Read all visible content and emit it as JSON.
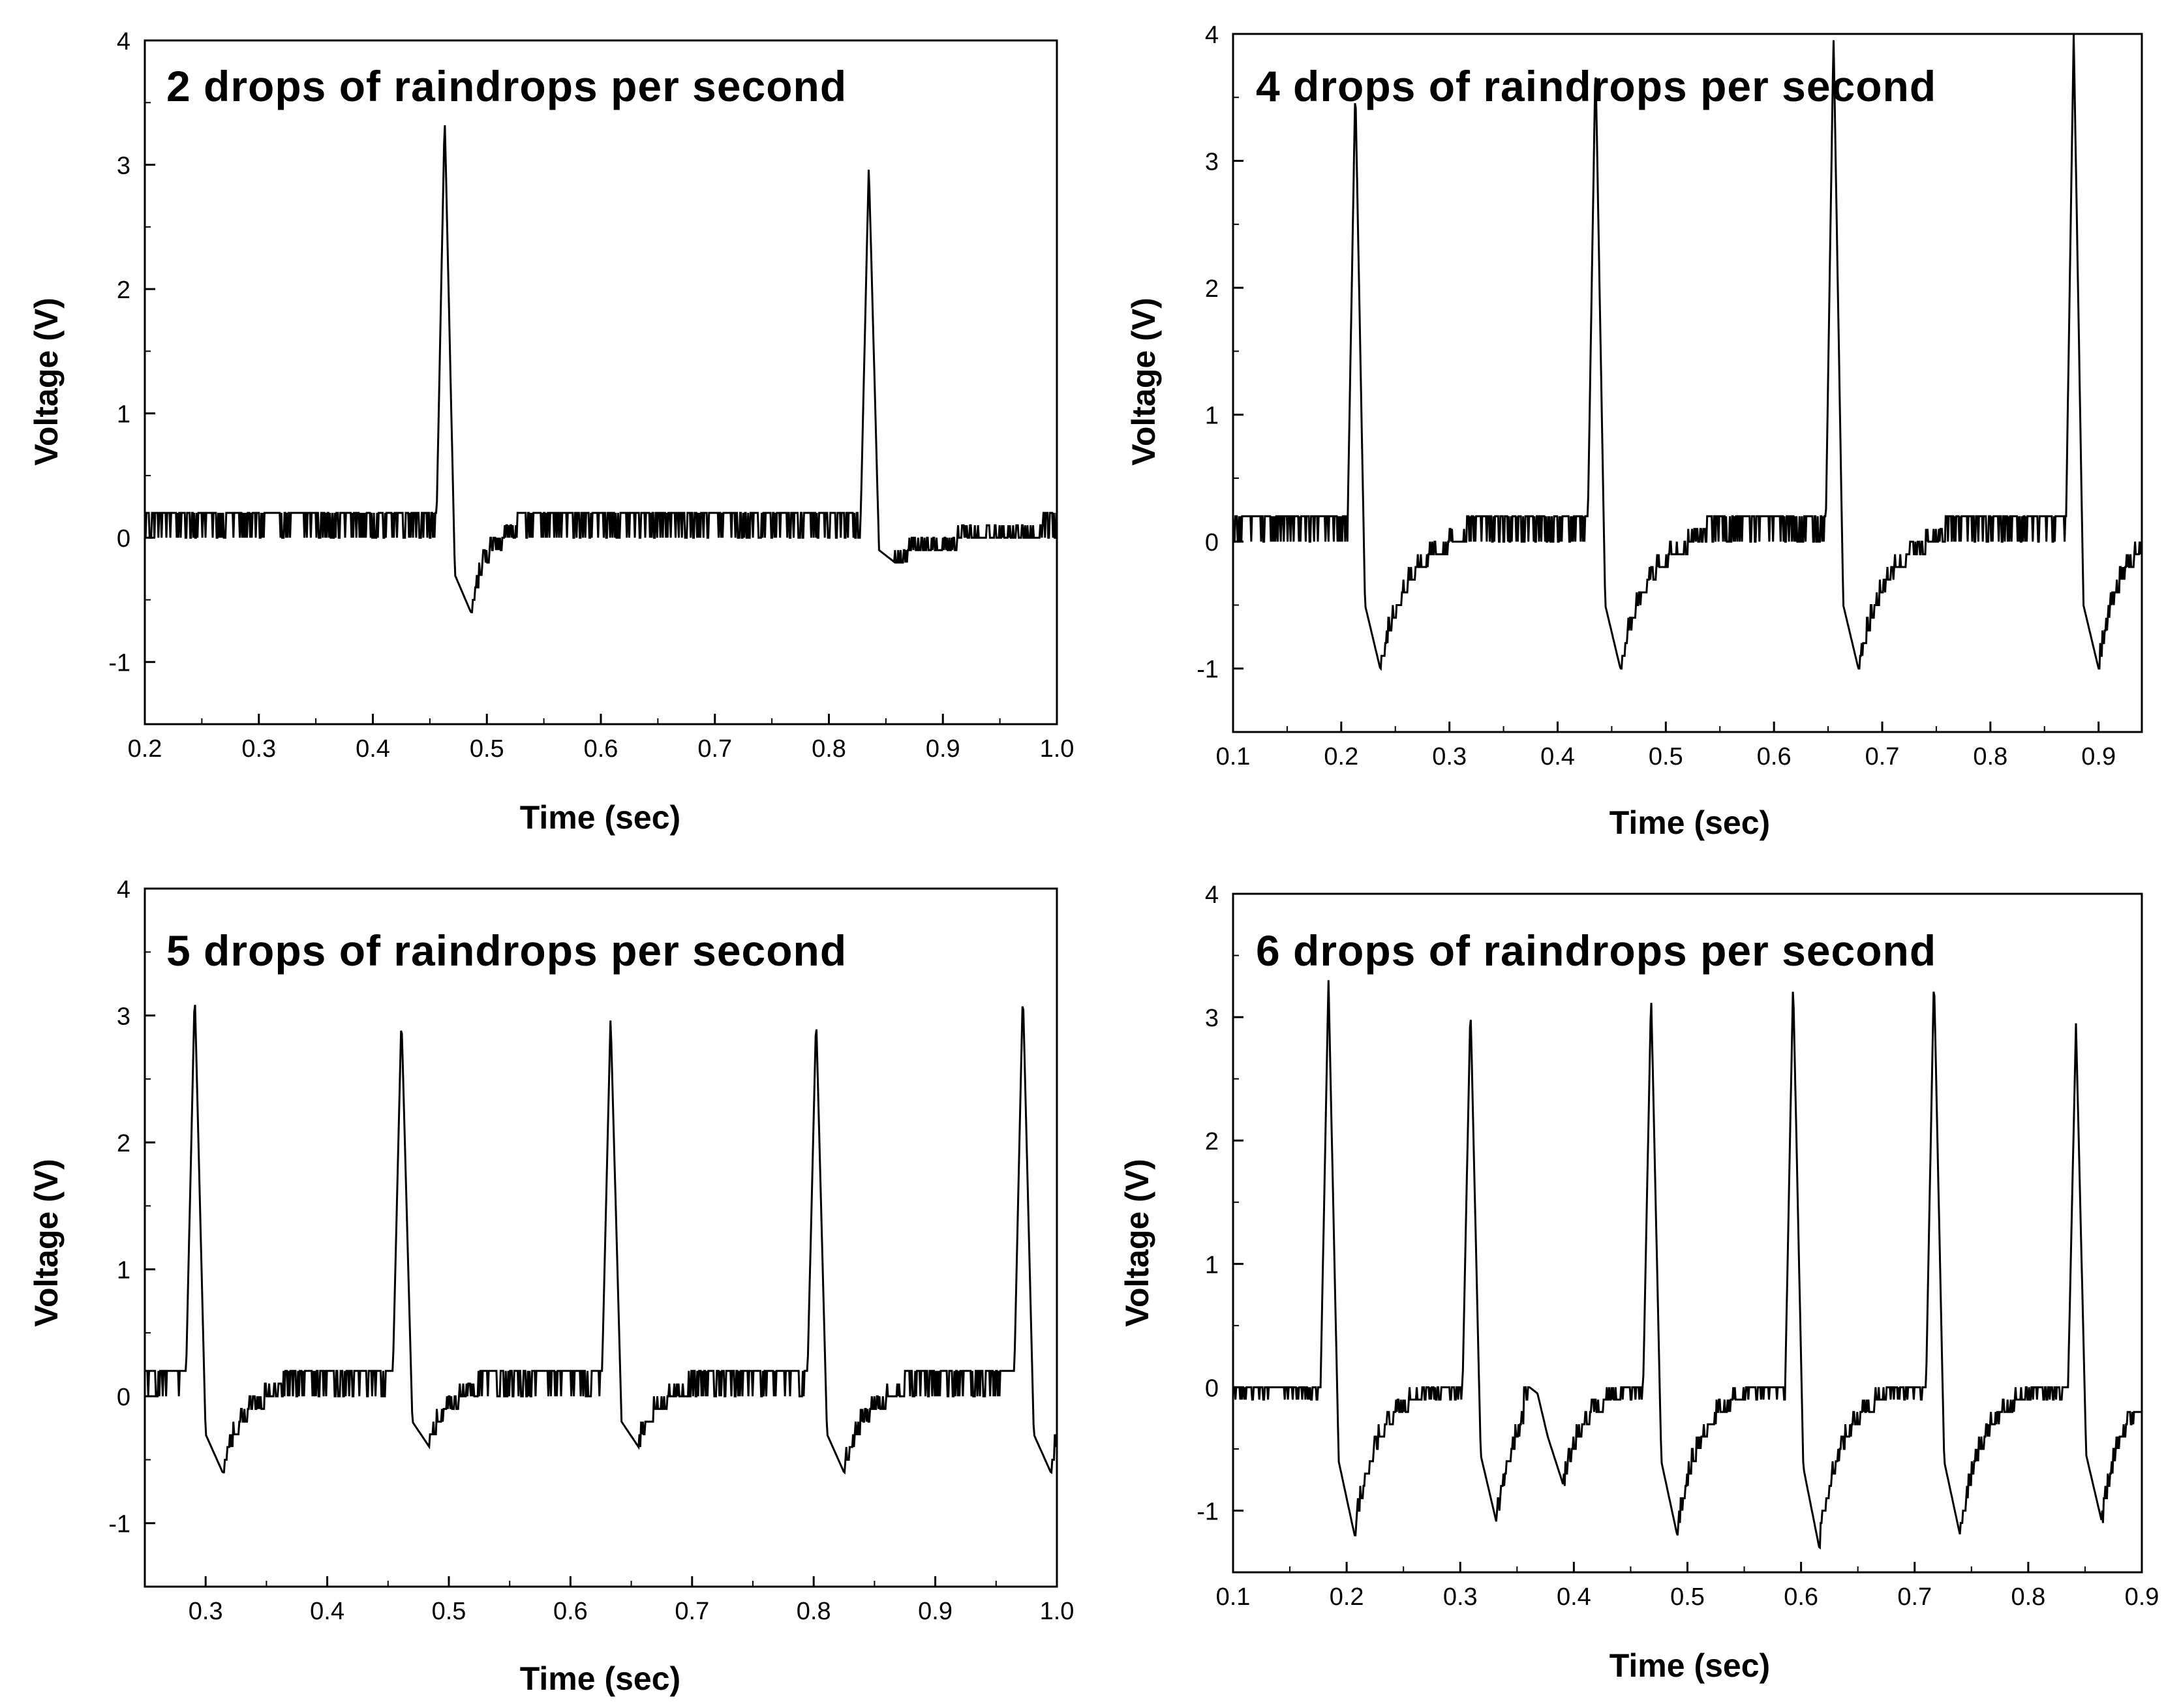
{
  "chart_data": [
    {
      "type": "line",
      "title": "2 drops of raindrops per second",
      "xlabel": "Time (sec)",
      "ylabel": "Voltage (V)",
      "xlim": [
        0.2,
        1.0
      ],
      "ylim": [
        -1.5,
        4
      ],
      "xticks": [
        "0.2",
        "0.3",
        "0.4",
        "0.5",
        "0.6",
        "0.7",
        "0.8",
        "0.9",
        "1.0"
      ],
      "yticks": [
        "-1",
        "0",
        "1",
        "2",
        "3",
        "4"
      ],
      "baseline": [
        0.0,
        0.2
      ],
      "peaks": [
        {
          "t": 0.463,
          "v": 3.4,
          "trough": -0.6,
          "rec": 0.04
        },
        {
          "t": 0.835,
          "v": 3.0,
          "trough": -0.2,
          "rec": 0.13
        }
      ]
    },
    {
      "type": "line",
      "title": "4 drops of raindrops per second",
      "xlabel": "Time (sec)",
      "ylabel": "Voltage (V)",
      "xlim": [
        0.1,
        0.94
      ],
      "ylim": [
        -1.5,
        4
      ],
      "xticks": [
        "0.1",
        "0.2",
        "0.3",
        "0.4",
        "0.5",
        "0.6",
        "0.7",
        "0.8",
        "0.9"
      ],
      "yticks": [
        "-1",
        "0",
        "1",
        "2",
        "3",
        "4"
      ],
      "baseline": [
        0.0,
        0.2
      ],
      "peaks": [
        {
          "t": 0.213,
          "v": 3.6,
          "trough": -1.0,
          "rec": 0.08
        },
        {
          "t": 0.435,
          "v": 3.8,
          "trough": -1.0,
          "rec": 0.08
        },
        {
          "t": 0.655,
          "v": 4.0,
          "trough": -1.0,
          "rec": 0.08
        },
        {
          "t": 0.877,
          "v": 4.0,
          "trough": -1.0,
          "rec": 0.06
        }
      ]
    },
    {
      "type": "line",
      "title": "5 drops of raindrops per second",
      "xlabel": "Time (sec)",
      "ylabel": "Voltage (V)",
      "xlim": [
        0.25,
        1.0
      ],
      "ylim": [
        -1.5,
        4
      ],
      "xticks": [
        "0.3",
        "0.4",
        "0.5",
        "0.6",
        "0.7",
        "0.8",
        "0.9",
        "1.0"
      ],
      "yticks": [
        "-1",
        "0",
        "1",
        "2",
        "3",
        "4"
      ],
      "baseline": [
        0.0,
        0.2
      ],
      "peaks": [
        {
          "t": 0.291,
          "v": 3.2,
          "trough": -0.6,
          "rec": 0.05
        },
        {
          "t": 0.461,
          "v": 3.0,
          "trough": -0.4,
          "rec": 0.04
        },
        {
          "t": 0.633,
          "v": 3.0,
          "trough": -0.4,
          "rec": 0.04
        },
        {
          "t": 0.802,
          "v": 3.0,
          "trough": -0.6,
          "rec": 0.05
        },
        {
          "t": 0.972,
          "v": 3.2,
          "trough": -0.6,
          "rec": 0.03
        }
      ]
    },
    {
      "type": "line",
      "title": "6 drops of raindrops per second",
      "xlabel": "Time (sec)",
      "ylabel": "Voltage (V)",
      "xlim": [
        0.1,
        0.9
      ],
      "ylim": [
        -1.5,
        4
      ],
      "xticks": [
        "0.1",
        "0.2",
        "0.3",
        "0.4",
        "0.5",
        "0.6",
        "0.7",
        "0.8",
        "0.9"
      ],
      "yticks": [
        "-1",
        "0",
        "1",
        "2",
        "3",
        "4"
      ],
      "baseline": [
        -0.1,
        0.0
      ],
      "peaks": [
        {
          "t": 0.184,
          "v": 3.3,
          "trough": -1.2,
          "rec": 0.06
        },
        {
          "t": 0.309,
          "v": 3.1,
          "trough": -1.1,
          "rec": 0.05
        },
        {
          "t": 0.368,
          "v": -0.05,
          "trough": -0.8,
          "rec": 0.05
        },
        {
          "t": 0.468,
          "v": 3.2,
          "trough": -1.2,
          "rec": 0.06
        },
        {
          "t": 0.593,
          "v": 3.3,
          "trough": -1.3,
          "rec": 0.06
        },
        {
          "t": 0.717,
          "v": 3.35,
          "trough": -1.2,
          "rec": 0.06
        },
        {
          "t": 0.842,
          "v": 2.95,
          "trough": -1.1,
          "rec": 0.05
        }
      ]
    }
  ]
}
